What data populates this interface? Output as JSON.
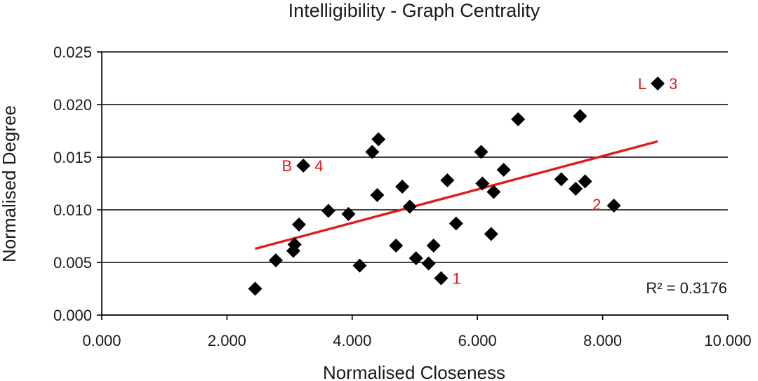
{
  "chart_data": {
    "type": "scatter",
    "title": "Intelligibility - Graph Centrality",
    "xlabel": "Normalised Closeness",
    "ylabel": "Normalised Degree",
    "xlim": [
      0,
      10
    ],
    "ylim": [
      0,
      0.025
    ],
    "x_ticks": [
      "0.000",
      "2.000",
      "4.000",
      "6.000",
      "8.000",
      "10.000"
    ],
    "y_ticks": [
      "0.000",
      "0.005",
      "0.010",
      "0.015",
      "0.020",
      "0.025"
    ],
    "grid": "horizontal",
    "marker": "diamond",
    "point_color": "#000000",
    "trendline_color": "#e11b1b",
    "annotation_color": "#e11b1b",
    "points": [
      {
        "x": 2.45,
        "y": 0.0025
      },
      {
        "x": 2.78,
        "y": 0.0052
      },
      {
        "x": 3.06,
        "y": 0.0061
      },
      {
        "x": 3.08,
        "y": 0.0067
      },
      {
        "x": 3.15,
        "y": 0.0086
      },
      {
        "x": 3.22,
        "y": 0.0142
      },
      {
        "x": 3.62,
        "y": 0.0099
      },
      {
        "x": 3.94,
        "y": 0.0096
      },
      {
        "x": 4.12,
        "y": 0.0047
      },
      {
        "x": 4.32,
        "y": 0.0155
      },
      {
        "x": 4.42,
        "y": 0.0167
      },
      {
        "x": 4.4,
        "y": 0.0114
      },
      {
        "x": 4.7,
        "y": 0.0066
      },
      {
        "x": 4.8,
        "y": 0.0122
      },
      {
        "x": 4.92,
        "y": 0.0103
      },
      {
        "x": 5.02,
        "y": 0.0054
      },
      {
        "x": 5.22,
        "y": 0.0049
      },
      {
        "x": 5.3,
        "y": 0.0066
      },
      {
        "x": 5.42,
        "y": 0.0035
      },
      {
        "x": 5.52,
        "y": 0.0128
      },
      {
        "x": 5.66,
        "y": 0.0087
      },
      {
        "x": 6.06,
        "y": 0.0155
      },
      {
        "x": 6.08,
        "y": 0.0125
      },
      {
        "x": 6.22,
        "y": 0.0077
      },
      {
        "x": 6.26,
        "y": 0.0117
      },
      {
        "x": 6.42,
        "y": 0.0138
      },
      {
        "x": 6.65,
        "y": 0.0186
      },
      {
        "x": 7.34,
        "y": 0.0129
      },
      {
        "x": 7.57,
        "y": 0.012
      },
      {
        "x": 7.64,
        "y": 0.0189
      },
      {
        "x": 7.72,
        "y": 0.0127
      },
      {
        "x": 8.18,
        "y": 0.0104
      },
      {
        "x": 8.88,
        "y": 0.022
      }
    ],
    "trendline": {
      "x": [
        2.45,
        8.88
      ],
      "y": [
        0.0063,
        0.0165
      ]
    },
    "annotations": [
      {
        "text": "L",
        "x": 8.88,
        "y": 0.022,
        "side": "left"
      },
      {
        "text": "3",
        "x": 8.88,
        "y": 0.022,
        "side": "right"
      },
      {
        "text": "B",
        "x": 3.22,
        "y": 0.0142,
        "side": "left"
      },
      {
        "text": "4",
        "x": 3.22,
        "y": 0.0142,
        "side": "right"
      },
      {
        "text": "1",
        "x": 5.42,
        "y": 0.0035,
        "side": "right"
      },
      {
        "text": "2",
        "x": 7.57,
        "y": 0.012,
        "side": "below"
      }
    ],
    "r2_label": "R² = 0.3176"
  }
}
